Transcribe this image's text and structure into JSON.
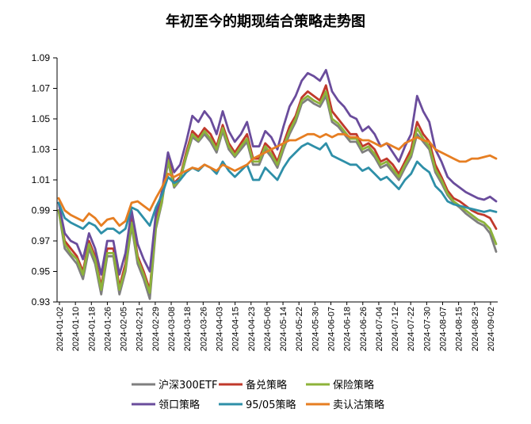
{
  "chart_data": {
    "type": "line",
    "title": "年初至今的期现结合策略走势图",
    "xlabel": "",
    "ylabel": "",
    "ylim": [
      0.93,
      1.09
    ],
    "yticks": [
      "0.93",
      "0.95",
      "0.97",
      "0.99",
      "1.01",
      "1.03",
      "1.05",
      "1.07",
      "1.09"
    ],
    "ytick_values": [
      0.93,
      0.95,
      0.97,
      0.99,
      1.01,
      1.03,
      1.05,
      1.07,
      1.09
    ],
    "x_tick_labels": [
      "2024-01-02",
      "2024-01-10",
      "2024-01-18",
      "2024-01-26",
      "2024-02-05",
      "2024-02-21",
      "2024-02-29",
      "2024-03-08",
      "2024-03-18",
      "2024-03-26",
      "2024-04-03",
      "2024-04-15",
      "2024-04-23",
      "2024-05-06",
      "2024-05-14",
      "2024-05-22",
      "2024-05-30",
      "2024-06-07",
      "2024-06-18",
      "2024-06-26",
      "2024-07-04",
      "2024-07-12",
      "2024-07-22",
      "2024-07-30",
      "2024-08-07",
      "2024-08-15",
      "2024-08-23",
      "2024-09-02"
    ],
    "grid": false,
    "legend_position": "bottom",
    "series": [
      {
        "name": "沪深300ETF",
        "color": "#7f7f7f",
        "values": [
          0.99,
          0.965,
          0.96,
          0.955,
          0.945,
          0.965,
          0.955,
          0.935,
          0.96,
          0.96,
          0.935,
          0.95,
          0.98,
          0.955,
          0.945,
          0.932,
          0.978,
          0.995,
          1.022,
          1.005,
          1.01,
          1.025,
          1.038,
          1.035,
          1.04,
          1.035,
          1.028,
          1.042,
          1.03,
          1.025,
          1.03,
          1.035,
          1.02,
          1.02,
          1.03,
          1.025,
          1.018,
          1.03,
          1.04,
          1.048,
          1.06,
          1.063,
          1.06,
          1.058,
          1.065,
          1.048,
          1.045,
          1.04,
          1.035,
          1.035,
          1.028,
          1.03,
          1.025,
          1.018,
          1.02,
          1.015,
          1.01,
          1.018,
          1.025,
          1.04,
          1.035,
          1.03,
          1.015,
          1.008,
          1.0,
          0.995,
          0.992,
          0.988,
          0.985,
          0.982,
          0.98,
          0.975,
          0.963
        ]
      },
      {
        "name": "备兑策略",
        "color": "#c0392b",
        "values": [
          0.99,
          0.97,
          0.965,
          0.96,
          0.95,
          0.97,
          0.96,
          0.94,
          0.965,
          0.965,
          0.94,
          0.955,
          0.985,
          0.96,
          0.95,
          0.938,
          0.982,
          0.998,
          1.025,
          1.008,
          1.012,
          1.028,
          1.042,
          1.038,
          1.044,
          1.04,
          1.032,
          1.046,
          1.034,
          1.028,
          1.034,
          1.04,
          1.024,
          1.024,
          1.034,
          1.03,
          1.022,
          1.034,
          1.045,
          1.052,
          1.064,
          1.068,
          1.065,
          1.062,
          1.072,
          1.055,
          1.05,
          1.045,
          1.04,
          1.04,
          1.032,
          1.034,
          1.03,
          1.022,
          1.024,
          1.02,
          1.014,
          1.022,
          1.03,
          1.048,
          1.04,
          1.035,
          1.02,
          1.012,
          1.003,
          0.998,
          0.996,
          0.993,
          0.99,
          0.988,
          0.987,
          0.985,
          0.978
        ]
      },
      {
        "name": "保险策略",
        "color": "#8db33a",
        "values": [
          0.99,
          0.968,
          0.962,
          0.958,
          0.948,
          0.968,
          0.958,
          0.938,
          0.962,
          0.962,
          0.938,
          0.952,
          0.982,
          0.958,
          0.948,
          0.936,
          0.98,
          0.996,
          1.023,
          1.006,
          1.011,
          1.026,
          1.04,
          1.036,
          1.042,
          1.037,
          1.03,
          1.044,
          1.032,
          1.026,
          1.032,
          1.037,
          1.022,
          1.022,
          1.032,
          1.027,
          1.02,
          1.032,
          1.042,
          1.05,
          1.062,
          1.065,
          1.062,
          1.06,
          1.068,
          1.05,
          1.047,
          1.042,
          1.037,
          1.037,
          1.03,
          1.032,
          1.027,
          1.02,
          1.022,
          1.017,
          1.012,
          1.02,
          1.027,
          1.044,
          1.037,
          1.032,
          1.017,
          1.01,
          1.001,
          0.996,
          0.993,
          0.99,
          0.987,
          0.984,
          0.982,
          0.978,
          0.968
        ]
      },
      {
        "name": "领口策略",
        "color": "#6a4c9c",
        "values": [
          0.995,
          0.975,
          0.97,
          0.968,
          0.958,
          0.975,
          0.965,
          0.948,
          0.97,
          0.97,
          0.948,
          0.962,
          0.99,
          0.968,
          0.958,
          0.95,
          0.988,
          1.002,
          1.028,
          1.015,
          1.02,
          1.035,
          1.052,
          1.048,
          1.055,
          1.05,
          1.04,
          1.055,
          1.042,
          1.035,
          1.04,
          1.048,
          1.032,
          1.032,
          1.042,
          1.038,
          1.03,
          1.045,
          1.058,
          1.065,
          1.075,
          1.08,
          1.078,
          1.075,
          1.082,
          1.068,
          1.062,
          1.058,
          1.052,
          1.05,
          1.042,
          1.045,
          1.04,
          1.032,
          1.034,
          1.028,
          1.022,
          1.032,
          1.04,
          1.065,
          1.055,
          1.048,
          1.03,
          1.022,
          1.012,
          1.008,
          1.005,
          1.002,
          1.0,
          0.998,
          0.997,
          0.999,
          0.996
        ]
      },
      {
        "name": "95/05策略",
        "color": "#2e8fa8",
        "values": [
          0.995,
          0.985,
          0.982,
          0.98,
          0.978,
          0.982,
          0.98,
          0.975,
          0.978,
          0.978,
          0.975,
          0.978,
          0.992,
          0.99,
          0.985,
          0.98,
          0.992,
          1.0,
          1.012,
          1.008,
          1.01,
          1.015,
          1.018,
          1.016,
          1.02,
          1.018,
          1.014,
          1.022,
          1.016,
          1.012,
          1.016,
          1.02,
          1.01,
          1.01,
          1.018,
          1.014,
          1.01,
          1.018,
          1.024,
          1.028,
          1.032,
          1.034,
          1.032,
          1.03,
          1.034,
          1.026,
          1.024,
          1.022,
          1.02,
          1.02,
          1.016,
          1.018,
          1.014,
          1.01,
          1.012,
          1.008,
          1.004,
          1.01,
          1.014,
          1.022,
          1.018,
          1.015,
          1.006,
          1.002,
          0.996,
          0.994,
          0.993,
          0.992,
          0.991,
          0.99,
          0.989,
          0.99,
          0.989
        ]
      },
      {
        "name": "卖认沽策略",
        "color": "#e67e22",
        "values": [
          0.998,
          0.99,
          0.987,
          0.985,
          0.983,
          0.988,
          0.985,
          0.98,
          0.984,
          0.985,
          0.98,
          0.983,
          0.995,
          0.996,
          0.993,
          0.99,
          0.998,
          1.005,
          1.014,
          1.012,
          1.014,
          1.016,
          1.018,
          1.017,
          1.02,
          1.018,
          1.016,
          1.02,
          1.018,
          1.016,
          1.018,
          1.02,
          1.024,
          1.026,
          1.028,
          1.03,
          1.032,
          1.034,
          1.036,
          1.036,
          1.038,
          1.04,
          1.04,
          1.038,
          1.04,
          1.038,
          1.04,
          1.04,
          1.038,
          1.038,
          1.036,
          1.036,
          1.034,
          1.032,
          1.034,
          1.032,
          1.03,
          1.034,
          1.036,
          1.038,
          1.036,
          1.035,
          1.03,
          1.028,
          1.026,
          1.024,
          1.022,
          1.022,
          1.024,
          1.024,
          1.025,
          1.026,
          1.024
        ]
      }
    ]
  }
}
